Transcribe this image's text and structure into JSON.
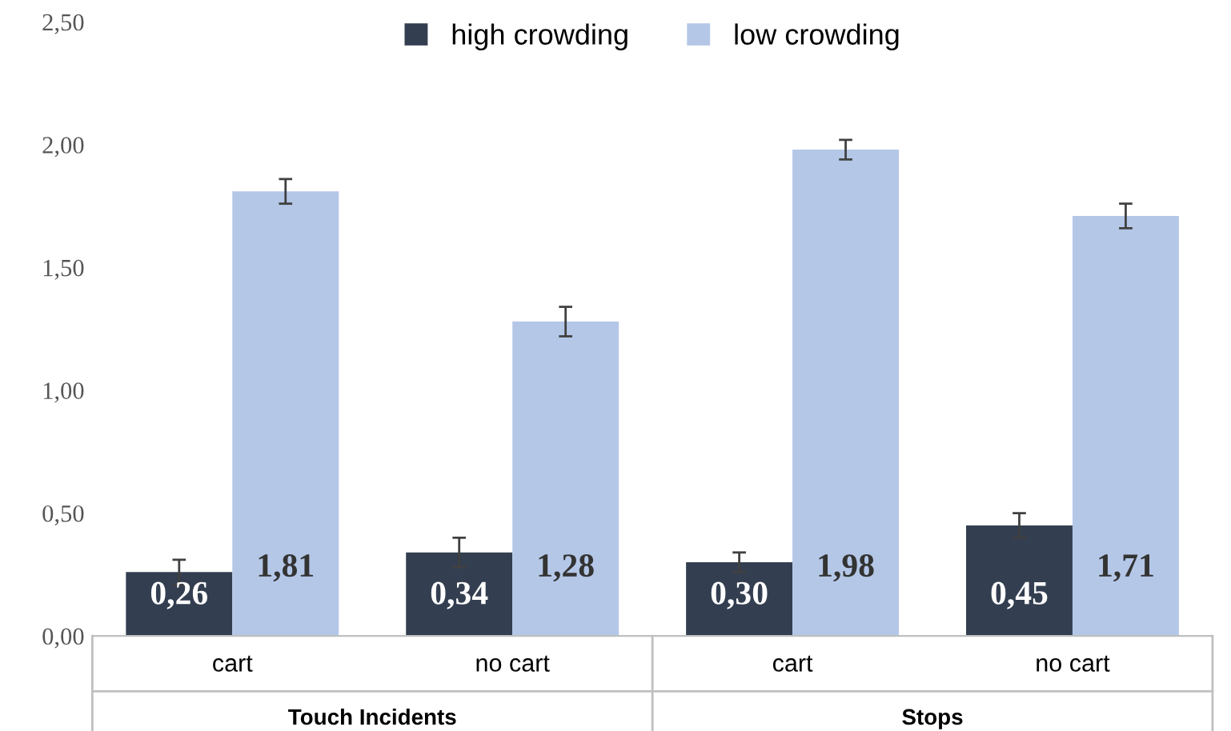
{
  "chart_data": {
    "type": "bar",
    "categories": [
      "cart",
      "no cart",
      "cart",
      "no cart"
    ],
    "series": [
      {
        "name": "high crowding",
        "color": "#333f50",
        "values": [
          0.26,
          0.34,
          0.3,
          0.45
        ],
        "errors": [
          0.05,
          0.06,
          0.04,
          0.05
        ],
        "value_labels": [
          "0,26",
          "0,34",
          "0,30",
          "0,45"
        ]
      },
      {
        "name": "low crowding",
        "color": "#b4c7e7",
        "values": [
          1.81,
          1.28,
          1.98,
          1.71
        ],
        "errors": [
          0.05,
          0.06,
          0.04,
          0.05
        ],
        "value_labels": [
          "1,81",
          "1,28",
          "1,98",
          "1,71"
        ]
      }
    ],
    "ylim": [
      0,
      2.5
    ],
    "yticks": [
      {
        "value": 0,
        "label": "0,00"
      },
      {
        "value": 0.5,
        "label": "0,50"
      },
      {
        "value": 1,
        "label": "1,00"
      },
      {
        "value": 1.5,
        "label": "1,50"
      },
      {
        "value": 2,
        "label": "2,00"
      },
      {
        "value": 2.5,
        "label": "2,50"
      }
    ],
    "annotations": [
      "Touch Incidents",
      "Stops"
    ],
    "legend": "top",
    "grid": false
  }
}
